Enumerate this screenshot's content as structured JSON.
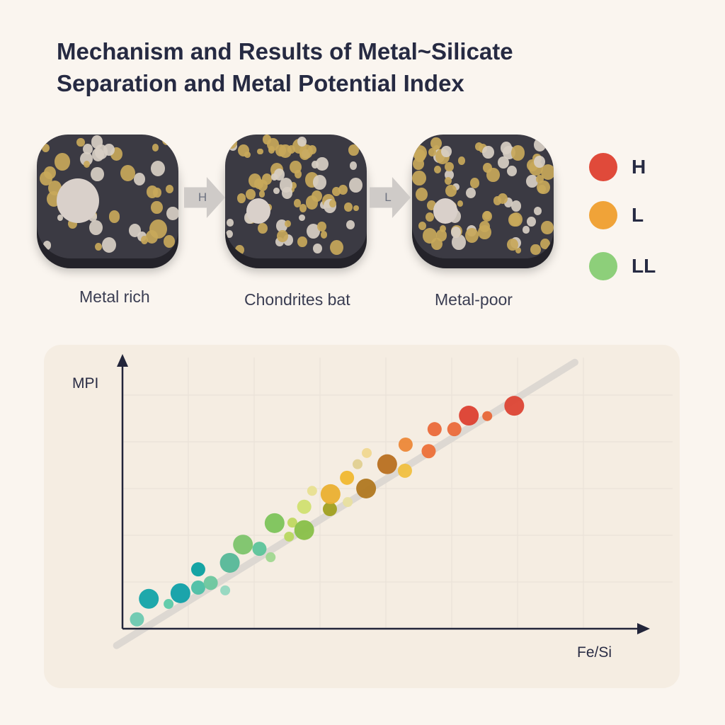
{
  "title": {
    "line1": "Mechanism and Results of Metal~Silicate",
    "line2": "Separation and Metal Potential Index"
  },
  "stages": [
    {
      "caption": "Metal rich"
    },
    {
      "caption": "Chondrites bat"
    },
    {
      "caption": "Metal-poor"
    }
  ],
  "arrows": [
    {
      "label": "H"
    },
    {
      "label": "L"
    }
  ],
  "legend": [
    {
      "label": "H",
      "color": "#e04a3a"
    },
    {
      "label": "L",
      "color": "#f0a338"
    },
    {
      "label": "LL",
      "color": "#8dcf7a"
    }
  ],
  "chart_data": {
    "type": "scatter",
    "xlabel": "Fe/Si",
    "ylabel": "MPI",
    "ticks": "none",
    "grid": true,
    "xlim": [
      0,
      8
    ],
    "ylim": [
      0,
      5.5
    ],
    "trend_line": {
      "from": [
        -0.09,
        -0.36
      ],
      "to": [
        6.87,
        5.7
      ],
      "color": "#ddd8d2"
    },
    "points": [
      {
        "x": 0.22,
        "y": 0.2,
        "size": 2,
        "color": "#6cc9b0"
      },
      {
        "x": 0.4,
        "y": 0.64,
        "size": 3,
        "color": "#12a4a8"
      },
      {
        "x": 0.7,
        "y": 0.53,
        "size": 1,
        "color": "#5ccaa8"
      },
      {
        "x": 0.88,
        "y": 0.76,
        "size": 3,
        "color": "#0fa0a8"
      },
      {
        "x": 1.15,
        "y": 1.27,
        "size": 2,
        "color": "#0aa0a0"
      },
      {
        "x": 1.15,
        "y": 0.88,
        "size": 2,
        "color": "#4bbfa5"
      },
      {
        "x": 1.34,
        "y": 0.98,
        "size": 2,
        "color": "#6cc79e"
      },
      {
        "x": 1.56,
        "y": 0.82,
        "size": 1,
        "color": "#94d8c0"
      },
      {
        "x": 1.63,
        "y": 1.41,
        "size": 3,
        "color": "#55b898"
      },
      {
        "x": 1.83,
        "y": 1.8,
        "size": 3,
        "color": "#7cc46a"
      },
      {
        "x": 2.08,
        "y": 1.71,
        "size": 2,
        "color": "#5cc49a"
      },
      {
        "x": 2.31,
        "y": 2.26,
        "size": 3,
        "color": "#7cc45a"
      },
      {
        "x": 2.25,
        "y": 1.53,
        "size": 1,
        "color": "#a0d890"
      },
      {
        "x": 2.53,
        "y": 1.97,
        "size": 1,
        "color": "#b8d860"
      },
      {
        "x": 2.58,
        "y": 2.27,
        "size": 1,
        "color": "#c0d860"
      },
      {
        "x": 2.76,
        "y": 2.11,
        "size": 3,
        "color": "#88c048"
      },
      {
        "x": 2.76,
        "y": 2.61,
        "size": 2,
        "color": "#d0e070"
      },
      {
        "x": 2.88,
        "y": 2.95,
        "size": 1,
        "color": "#e8e090"
      },
      {
        "x": 3.15,
        "y": 2.56,
        "size": 2,
        "color": "#a0a020"
      },
      {
        "x": 3.16,
        "y": 2.88,
        "size": 3,
        "color": "#eab030"
      },
      {
        "x": 3.41,
        "y": 3.23,
        "size": 2,
        "color": "#f0b830"
      },
      {
        "x": 3.42,
        "y": 2.71,
        "size": 1,
        "color": "#e8e0a0"
      },
      {
        "x": 3.57,
        "y": 3.52,
        "size": 1,
        "color": "#e0d090"
      },
      {
        "x": 3.7,
        "y": 3.0,
        "size": 3,
        "color": "#b07820"
      },
      {
        "x": 3.71,
        "y": 3.76,
        "size": 1,
        "color": "#f0d890"
      },
      {
        "x": 4.02,
        "y": 3.52,
        "size": 3,
        "color": "#b87020"
      },
      {
        "x": 4.29,
        "y": 3.38,
        "size": 2,
        "color": "#f0c040"
      },
      {
        "x": 4.3,
        "y": 3.94,
        "size": 2,
        "color": "#ec8838"
      },
      {
        "x": 4.65,
        "y": 3.8,
        "size": 2,
        "color": "#ec7038"
      },
      {
        "x": 4.74,
        "y": 4.27,
        "size": 2,
        "color": "#ea6a3a"
      },
      {
        "x": 5.04,
        "y": 4.27,
        "size": 2,
        "color": "#ea6a3a"
      },
      {
        "x": 5.26,
        "y": 4.56,
        "size": 3,
        "color": "#dc4030"
      },
      {
        "x": 5.54,
        "y": 4.55,
        "size": 1,
        "color": "#e86838"
      },
      {
        "x": 5.95,
        "y": 4.77,
        "size": 3,
        "color": "#dc4434"
      }
    ]
  }
}
